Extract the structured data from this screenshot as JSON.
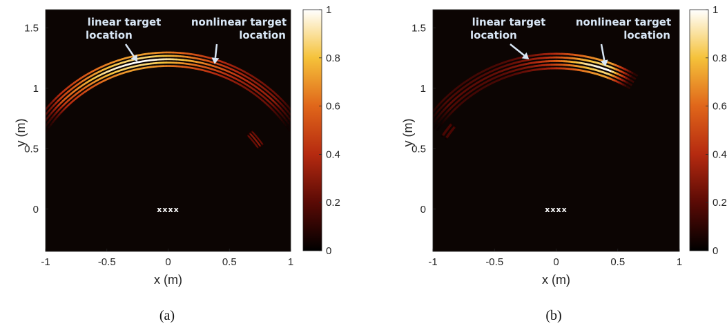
{
  "colors": {
    "background": "#0c0503",
    "colormap": [
      "#000000",
      "#5a0a05",
      "#b52a10",
      "#e0661a",
      "#f5c23a",
      "#ffffff"
    ],
    "annotation": "#d8e6f5"
  },
  "chart_data": [
    {
      "type": "heatmap",
      "caption": "(a)",
      "xlabel": "x (m)",
      "ylabel": "y (m)",
      "xlim": [
        -1,
        1
      ],
      "ylim": [
        -0.35,
        1.65
      ],
      "xticks": [
        "-1",
        "-0.5",
        "0",
        "0.5",
        "1"
      ],
      "yticks": [
        "0",
        "0.5",
        "1",
        "1.5"
      ],
      "colorbar": {
        "range": [
          0,
          1
        ],
        "ticks": [
          "0",
          "0.2",
          "0.4",
          "0.6",
          "0.8",
          "1"
        ]
      },
      "array_marker": {
        "label": "xxxx",
        "x": 0,
        "y": 0
      },
      "annotations": [
        {
          "lines": [
            "linear target",
            "location"
          ],
          "point": [
            -0.25,
            1.22
          ]
        },
        {
          "lines": [
            "nonlinear target",
            "location"
          ],
          "point": [
            0.38,
            1.2
          ]
        }
      ],
      "arcs": [
        {
          "center": [
            0,
            0
          ],
          "r_inner": 1.17,
          "r_outer": 1.31,
          "theta_start": 33,
          "theta_end": 148,
          "stripes": 5,
          "peak_theta": 102,
          "peak": 1.0,
          "floor": 0.3
        },
        {
          "center": [
            0,
            0
          ],
          "r_inner": 0.88,
          "r_outer": 0.95,
          "theta_start": 34,
          "theta_end": 44,
          "stripes": 3,
          "peak_theta": 39,
          "peak": 0.3,
          "floor": 0.3
        }
      ]
    },
    {
      "type": "heatmap",
      "caption": "(b)",
      "xlabel": "x (m)",
      "ylabel": "y (m)",
      "xlim": [
        -1,
        1
      ],
      "ylim": [
        -0.35,
        1.65
      ],
      "xticks": [
        "-1",
        "-0.5",
        "0",
        "0.5",
        "1"
      ],
      "yticks": [
        "0",
        "0.5",
        "1",
        "1.5"
      ],
      "colorbar": {
        "range": [
          0,
          1
        ],
        "ticks": [
          "0",
          "0.2",
          "0.4",
          "0.6",
          "0.8",
          "1"
        ]
      },
      "array_marker": {
        "label": "xxxx",
        "x": 0,
        "y": 0
      },
      "annotations": [
        {
          "lines": [
            "linear target",
            "location"
          ],
          "point": [
            -0.22,
            1.24
          ]
        },
        {
          "lines": [
            "nonlinear target",
            "location"
          ],
          "point": [
            0.4,
            1.18
          ]
        }
      ],
      "arcs": [
        {
          "center": [
            0,
            0
          ],
          "r_inner": 1.15,
          "r_outer": 1.3,
          "theta_start": 59,
          "theta_end": 146,
          "stripes": 5,
          "peak_theta": 70,
          "peak": 1.0,
          "floor": 0.2
        },
        {
          "center": [
            0,
            0
          ],
          "r_inner": 1.05,
          "r_outer": 1.12,
          "theta_start": 140,
          "theta_end": 147,
          "stripes": 2,
          "peak_theta": 144,
          "peak": 0.2,
          "floor": 0.2
        }
      ]
    }
  ]
}
